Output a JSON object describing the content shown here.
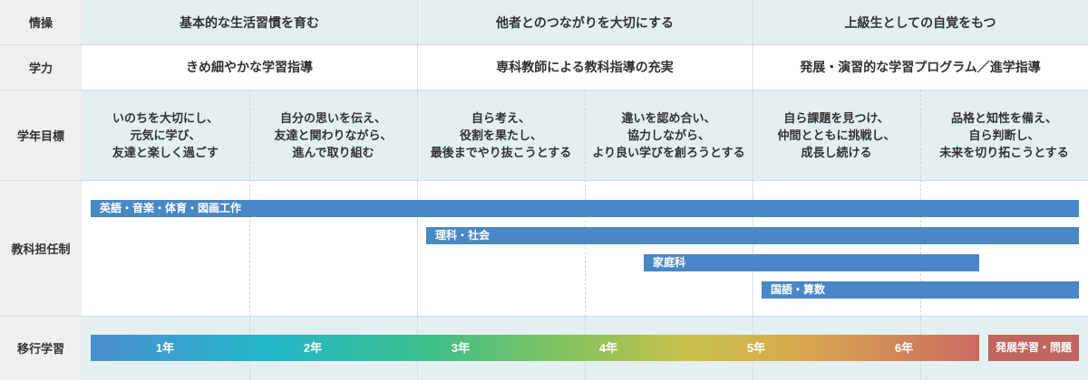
{
  "row_headers": {
    "emotion": "情操",
    "academic": "学力",
    "grade_goals": "学年目標",
    "teacher_system": "教科担任制",
    "transition": "移行学習"
  },
  "emotion": [
    "基本的な生活習慣を育む",
    "他者とのつながりを大切にする",
    "上級生としての自覚をもつ"
  ],
  "academic": [
    "きめ細やかな学習指導",
    "専科教師による教科指導の充実",
    "発展・演習的な学習プログラム／進学指導"
  ],
  "grade_goals": [
    "いのちを大切にし、\n元気に学び、\n友達と楽しく過ごす",
    "自分の思いを伝え、\n友達と関わりながら、\n進んで取り組む",
    "自ら考え、\n役割を果たし、\n最後までやり抜こうとする",
    "違いを認め合い、\n協力しながら、\nより良い学びを創ろうとする",
    "自ら課題を見つけ、\n仲間とともに挑戦し、\n成長し続ける",
    "品格と知性を備え、\n自ら判断し、\n未来を切り拓こうとする"
  ],
  "subject_bars": [
    "英語・音楽・体育・図画工作",
    "理科・社会",
    "家庭科",
    "国語・算数"
  ],
  "years": [
    "1年",
    "2年",
    "3年",
    "4年",
    "5年",
    "6年"
  ],
  "advanced_label": "発展学習・問題",
  "colors": {
    "bar_blue": "#4a87c6",
    "tint": "#e3eff0",
    "header_gray": "#efefef",
    "advanced": "#c16560"
  }
}
